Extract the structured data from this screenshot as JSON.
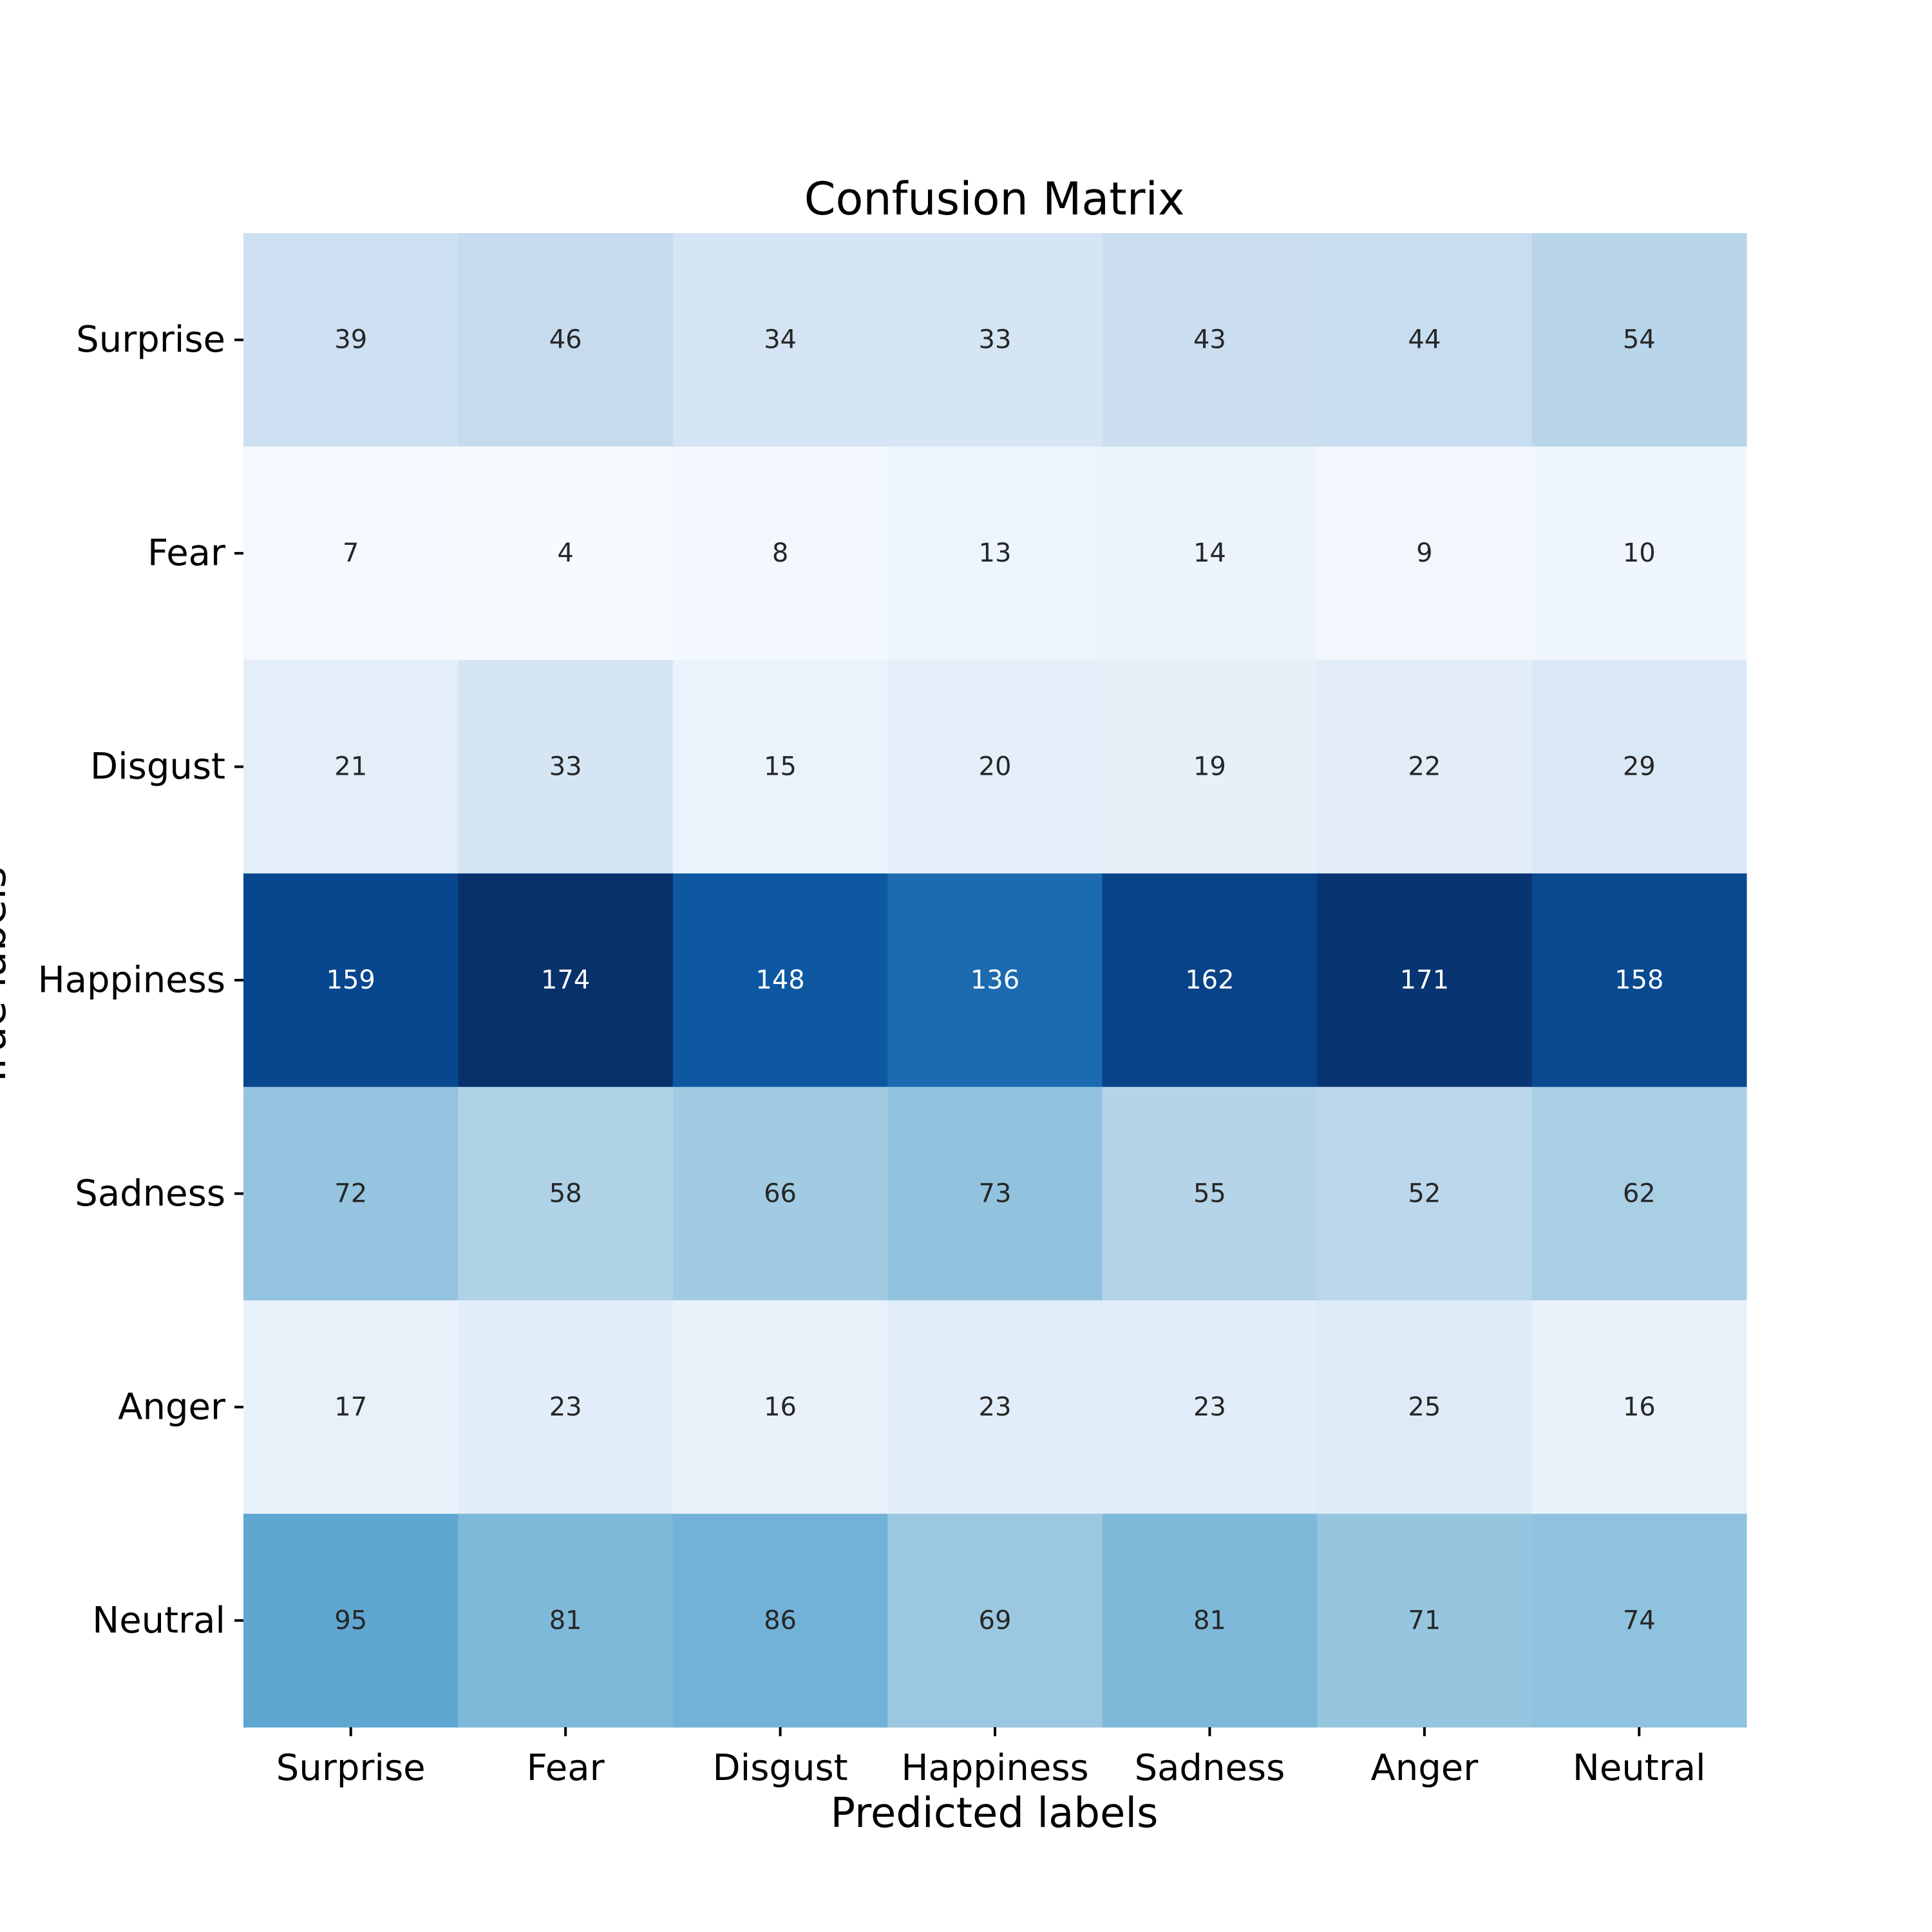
{
  "chart_data": {
    "type": "heatmap",
    "title": "Confusion Matrix",
    "xlabel": "Predicted labels",
    "ylabel": "True labels",
    "x_categories": [
      "Surprise",
      "Fear",
      "Disgust",
      "Happiness",
      "Sadness",
      "Anger",
      "Neutral"
    ],
    "y_categories": [
      "Surprise",
      "Fear",
      "Disgust",
      "Happiness",
      "Sadness",
      "Anger",
      "Neutral"
    ],
    "values": [
      [
        39,
        46,
        34,
        33,
        43,
        44,
        54
      ],
      [
        7,
        4,
        8,
        13,
        14,
        9,
        10
      ],
      [
        21,
        33,
        15,
        20,
        19,
        22,
        29
      ],
      [
        159,
        174,
        148,
        136,
        162,
        171,
        158
      ],
      [
        72,
        58,
        66,
        73,
        55,
        52,
        62
      ],
      [
        17,
        23,
        16,
        23,
        23,
        25,
        16
      ],
      [
        95,
        81,
        86,
        69,
        81,
        71,
        74
      ]
    ],
    "colormap": "Blues",
    "colorbar": false,
    "annotations": true
  }
}
